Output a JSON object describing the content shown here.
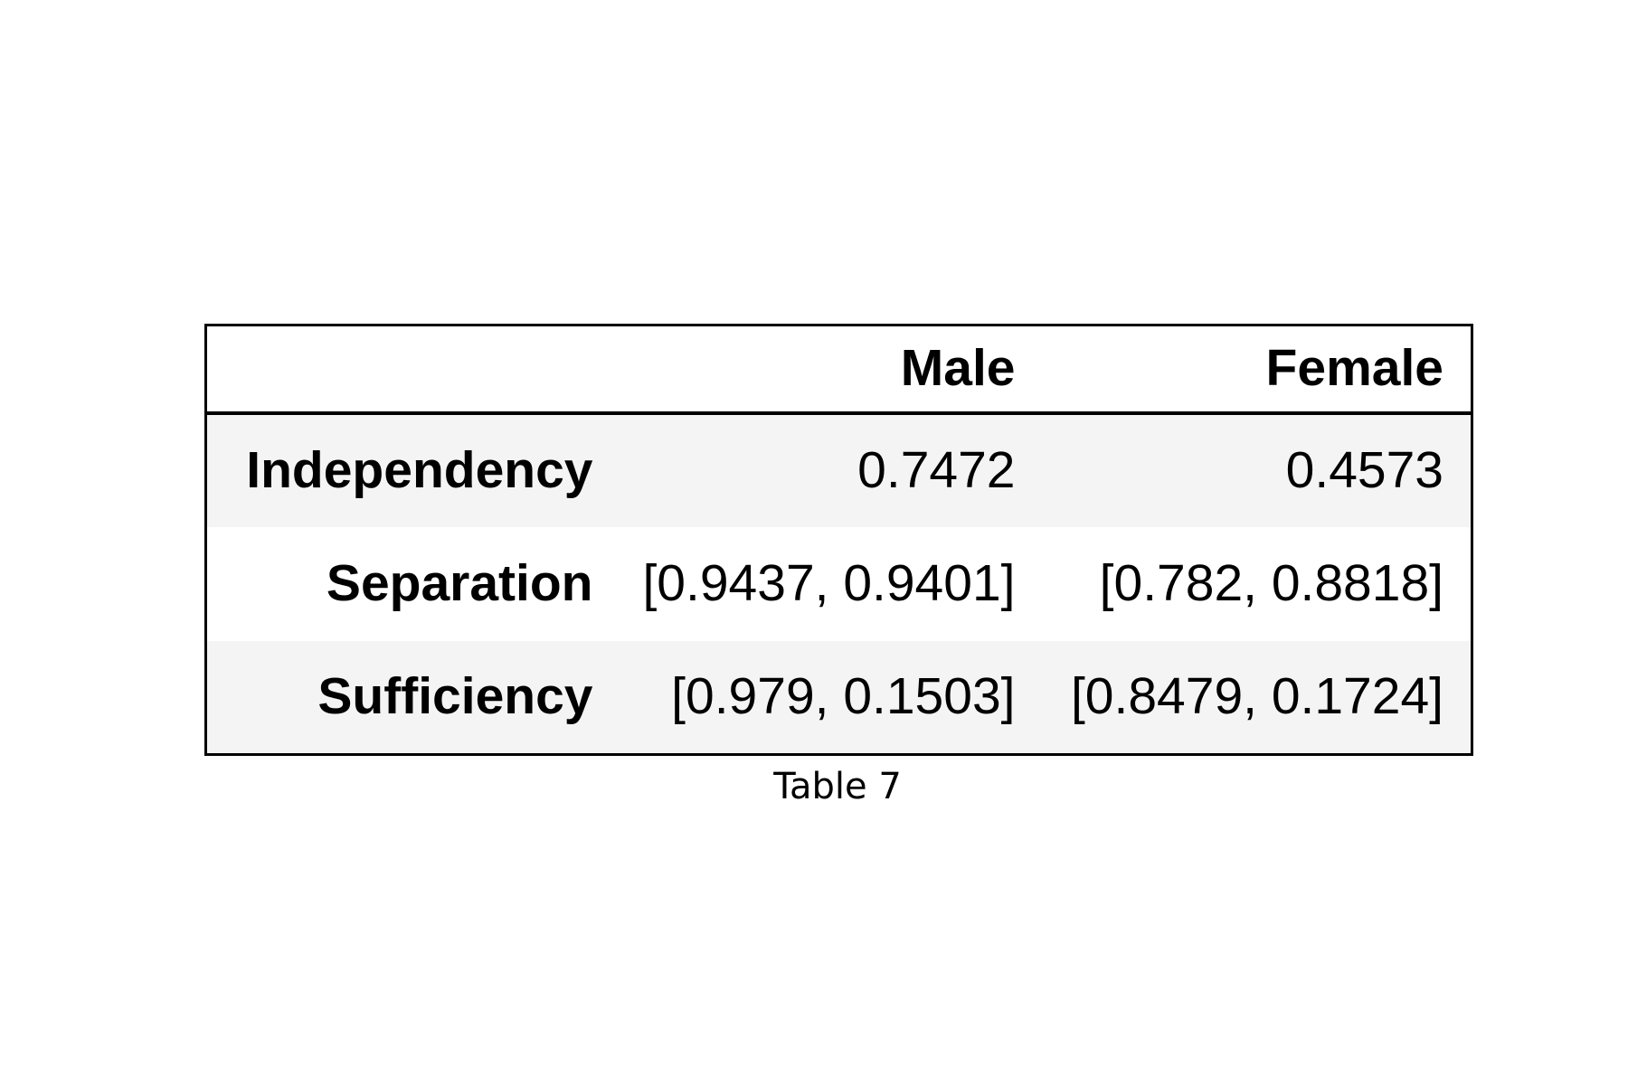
{
  "chart_data": {
    "type": "table",
    "columns": [
      "",
      "Male",
      "Female"
    ],
    "rows": [
      {
        "label": "Independency",
        "cells": [
          "0.7472",
          "0.4573"
        ]
      },
      {
        "label": "Separation",
        "cells": [
          "[0.9437, 0.9401]",
          "[0.782, 0.8818]"
        ]
      },
      {
        "label": "Sufficiency",
        "cells": [
          "[0.979, 0.1503]",
          "[0.8479, 0.1724]"
        ]
      }
    ],
    "caption": "Table 7",
    "colors": {
      "border": "#000000",
      "striped_row": "#f4f4f4",
      "plain_row": "#ffffff",
      "text": "#000000"
    }
  }
}
